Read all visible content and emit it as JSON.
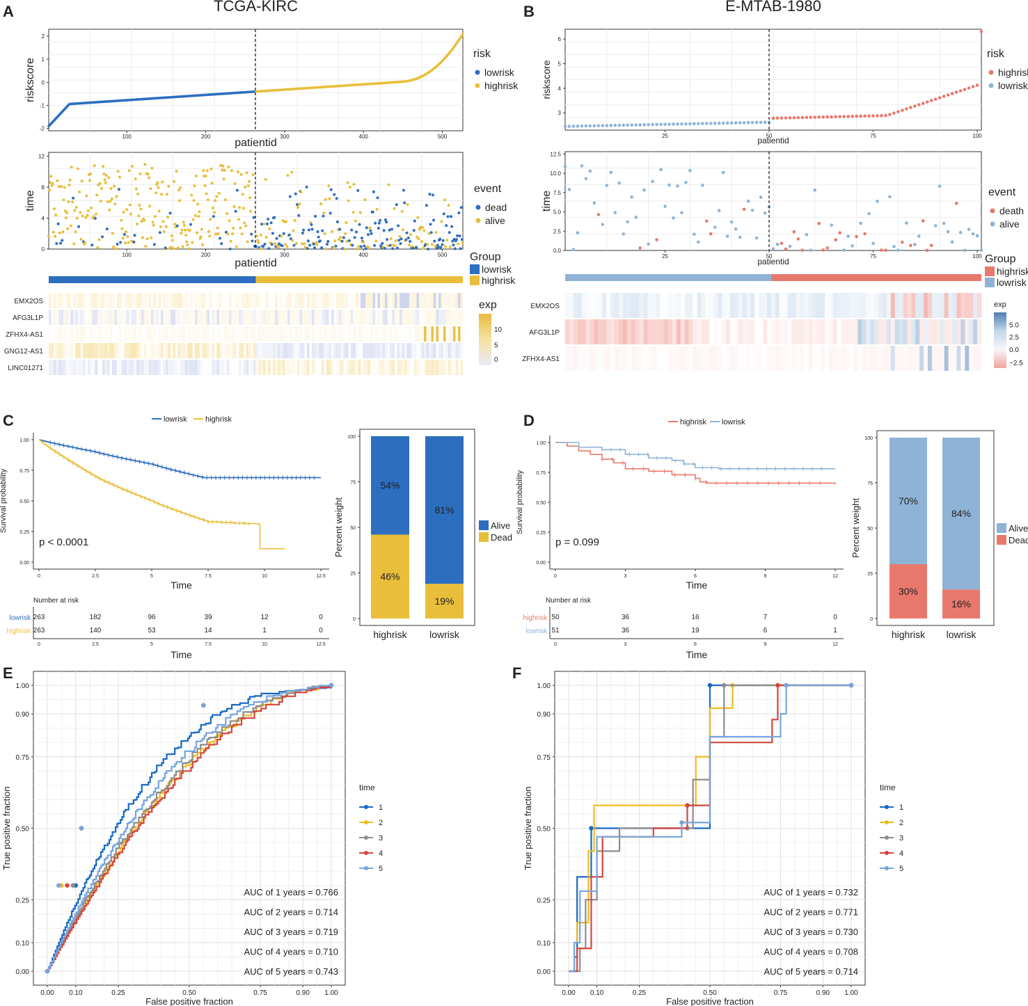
{
  "colors": {
    "lowA": "#2D6EBF",
    "highA": "#E9BE3A",
    "highB": "#E8786C",
    "lowB": "#8FB3D6",
    "roc1": "#1668C4",
    "roc2": "#F0BA1E",
    "roc3": "#8C8C8C",
    "roc4": "#D5453A",
    "roc5": "#74A5DE"
  },
  "panel_labels": {
    "A": "A",
    "B": "B",
    "C": "C",
    "D": "D",
    "E": "E",
    "F": "F"
  },
  "panelA": {
    "title": "TCGA-KIRC",
    "risk": {
      "ylabel": "riskscore",
      "xlabel": "patientid",
      "yticks": [
        "-2",
        "-1",
        "0",
        "1",
        "2"
      ],
      "xticks": [
        "100",
        "200",
        "300",
        "400",
        "500"
      ],
      "legend_title": "risk",
      "legend": [
        "lowrisk",
        "highrisk"
      ]
    },
    "time": {
      "ylabel": "time",
      "xlabel": "patientid",
      "yticks": [
        "0",
        "4",
        "8",
        "12"
      ],
      "xticks": [
        "100",
        "200",
        "300",
        "400",
        "500"
      ],
      "legend_title": "event",
      "legend": [
        "dead",
        "alive"
      ]
    },
    "group": {
      "legend_title": "Group",
      "legend": [
        "lowrisk",
        "highrisk"
      ]
    },
    "heat": {
      "genes": [
        "EMX2OS",
        "AFG3L1P",
        "ZFHX4-AS1",
        "GNG12-AS1",
        "LINC01271"
      ],
      "legend_title": "exp",
      "legend_ticks": [
        "10",
        "5",
        "0"
      ]
    }
  },
  "panelB": {
    "title": "E-MTAB-1980",
    "risk": {
      "ylabel": "riskscore",
      "xlabel": "patientid",
      "yticks": [
        "3",
        "4",
        "5",
        "6"
      ],
      "xticks": [
        "25",
        "50",
        "75",
        "100"
      ],
      "legend_title": "risk",
      "legend": [
        "highrisk",
        "lowrisk"
      ]
    },
    "time": {
      "ylabel": "time",
      "xlabel": "patientid",
      "yticks": [
        "0.0",
        "2.5",
        "5.0",
        "7.5",
        "10.0",
        "12.5"
      ],
      "xticks": [
        "25",
        "50",
        "75",
        "100"
      ],
      "legend_title": "event",
      "legend": [
        "death",
        "alive"
      ]
    },
    "group": {
      "legend_title": "Group",
      "legend": [
        "highrisk",
        "lowrisk"
      ]
    },
    "heat": {
      "genes": [
        "EMX2OS",
        "AFG3L1P",
        "ZFHX4-AS1"
      ],
      "legend_title": "exp",
      "legend_ticks": [
        "5.0",
        "2.5",
        "0.0",
        "−2.5"
      ]
    }
  },
  "panelC": {
    "legend": [
      "lowrisk",
      "highrisk"
    ],
    "ylabel": "Survival probability",
    "xlabel": "Time",
    "yticks": [
      "0.00",
      "0.25",
      "0.50",
      "0.75",
      "1.00"
    ],
    "xticks": [
      "0",
      "2.5",
      "5",
      "7.5",
      "10",
      "12.5"
    ],
    "pvalue": "p < 0.0001",
    "risk_table": {
      "title": "Number at risk",
      "rows": [
        {
          "label": "lowrisk",
          "values": [
            "263",
            "182",
            "96",
            "39",
            "12",
            "0"
          ]
        },
        {
          "label": "highrisk",
          "values": [
            "263",
            "140",
            "53",
            "14",
            "1",
            "0"
          ]
        }
      ],
      "xlabel": "Time"
    },
    "bar": {
      "ylabel": "Percent weight",
      "yticks": [
        "0",
        "25",
        "50",
        "75",
        "100"
      ],
      "categories": [
        "highrisk",
        "lowrisk"
      ],
      "alive_labels": [
        "54%",
        "81%"
      ],
      "dead_labels": [
        "46%",
        "19%"
      ],
      "legend": [
        "Alive",
        "Dead"
      ]
    }
  },
  "panelD": {
    "legend": [
      "highrisk",
      "lowrisk"
    ],
    "ylabel": "Survival probability",
    "xlabel": "Time",
    "yticks": [
      "0.00",
      "0.25",
      "0.50",
      "0.75",
      "1.00"
    ],
    "xticks": [
      "0",
      "3",
      "6",
      "9",
      "12"
    ],
    "pvalue": "p = 0.099",
    "risk_table": {
      "title": "Number at risk",
      "rows": [
        {
          "label": "highrisk",
          "values": [
            "50",
            "36",
            "16",
            "7",
            "0"
          ]
        },
        {
          "label": "lowrisk",
          "values": [
            "51",
            "36",
            "19",
            "6",
            "1"
          ]
        }
      ],
      "xlabel": "Time"
    },
    "bar": {
      "ylabel": "Percent weight",
      "yticks": [
        "0",
        "25",
        "50",
        "75",
        "100"
      ],
      "categories": [
        "highrisk",
        "lowrisk"
      ],
      "alive_labels": [
        "70%",
        "84%"
      ],
      "dead_labels": [
        "30%",
        "16%"
      ],
      "legend": [
        "Alive",
        "Dead"
      ]
    }
  },
  "panelE": {
    "ylabel": "True positive fraction",
    "xlabel": "False positive fraction",
    "yticks": [
      "0.00",
      "0.10",
      "0.25",
      "0.50",
      "0.75",
      "0.90",
      "1.00"
    ],
    "xticks": [
      "0.00",
      "0.10",
      "0.25",
      "0.50",
      "0.75",
      "0.90",
      "1.00"
    ],
    "legend_title": "time",
    "legend": [
      "1",
      "2",
      "3",
      "4",
      "5"
    ],
    "auc": [
      "AUC of 1 years = 0.766",
      "AUC of 2 years = 0.714",
      "AUC of 3 years = 0.719",
      "AUC of 4 years = 0.710",
      "AUC of 5 years = 0.743"
    ]
  },
  "panelF": {
    "ylabel": "True positive fraction",
    "xlabel": "False positive fraction",
    "yticks": [
      "0.00",
      "0.10",
      "0.25",
      "0.50",
      "0.75",
      "0.90",
      "1.00"
    ],
    "xticks": [
      "0.00",
      "0.10",
      "0.25",
      "0.50",
      "0.75",
      "0.90",
      "1.00"
    ],
    "legend_title": "time",
    "legend": [
      "1",
      "2",
      "3",
      "4",
      "5"
    ],
    "auc": [
      "AUC of 1 years = 0.732",
      "AUC of 2 years = 0.771",
      "AUC of 3 years = 0.730",
      "AUC of 4 years = 0.708",
      "AUC of 5 years = 0.714"
    ]
  },
  "chart_data": [
    {
      "type": "scatter",
      "panel": "A-risk",
      "title": "TCGA-KIRC",
      "xlabel": "patientid",
      "ylabel": "riskscore",
      "xlim": [
        1,
        526
      ],
      "ylim": [
        -2,
        2.2
      ],
      "cutoff": 263,
      "series": [
        {
          "name": "lowrisk",
          "x": [
            1,
            5,
            20,
            60,
            120,
            180,
            240,
            263
          ],
          "y": [
            -1.9,
            -1.5,
            -1.25,
            -1.0,
            -0.85,
            -0.7,
            -0.5,
            -0.4
          ]
        },
        {
          "name": "highrisk",
          "x": [
            264,
            300,
            350,
            400,
            450,
            480,
            500,
            515,
            526
          ],
          "y": [
            -0.38,
            -0.3,
            -0.2,
            0.0,
            0.25,
            0.5,
            0.8,
            1.2,
            2.0
          ]
        }
      ]
    },
    {
      "type": "scatter",
      "panel": "A-time",
      "xlabel": "patientid",
      "ylabel": "time",
      "xlim": [
        1,
        526
      ],
      "ylim": [
        0,
        12.5
      ],
      "series": [
        {
          "name": "dead"
        },
        {
          "name": "alive"
        }
      ]
    },
    {
      "type": "scatter",
      "panel": "B-risk",
      "title": "E-MTAB-1980",
      "xlabel": "patientid",
      "ylabel": "riskscore",
      "xlim": [
        1,
        101
      ],
      "ylim": [
        2.3,
        6.4
      ],
      "cutoff": 50,
      "series": [
        {
          "name": "lowrisk",
          "x": [
            1,
            10,
            25,
            40,
            50
          ],
          "y": [
            2.45,
            2.55,
            2.65,
            2.72,
            2.76
          ]
        },
        {
          "name": "highrisk",
          "x": [
            51,
            65,
            75,
            80,
            90,
            98,
            100
          ],
          "y": [
            2.78,
            2.85,
            2.95,
            3.3,
            3.7,
            4.0,
            6.3
          ]
        }
      ]
    },
    {
      "type": "scatter",
      "panel": "B-time",
      "xlabel": "patientid",
      "ylabel": "time",
      "xlim": [
        1,
        101
      ],
      "ylim": [
        0,
        12.5
      ],
      "series": [
        {
          "name": "death"
        },
        {
          "name": "alive"
        }
      ]
    },
    {
      "type": "line",
      "panel": "C",
      "xlabel": "Time",
      "ylabel": "Survival probability",
      "xlim": [
        0,
        12.5
      ],
      "ylim": [
        0,
        1
      ],
      "series": [
        {
          "name": "lowrisk",
          "x": [
            0,
            1,
            2.5,
            5,
            7.5,
            12.5
          ],
          "y": [
            1.0,
            0.96,
            0.9,
            0.8,
            0.69,
            0.69
          ]
        },
        {
          "name": "highrisk",
          "x": [
            0,
            1,
            2.5,
            5,
            7.5,
            9.5,
            9.8,
            10.8
          ],
          "y": [
            1.0,
            0.83,
            0.7,
            0.5,
            0.33,
            0.31,
            0.11,
            0.11
          ]
        }
      ]
    },
    {
      "type": "bar",
      "panel": "C-bar",
      "ylabel": "Percent weight",
      "categories": [
        "highrisk",
        "lowrisk"
      ],
      "series": [
        {
          "name": "Alive",
          "values": [
            54,
            81
          ]
        },
        {
          "name": "Dead",
          "values": [
            46,
            19
          ]
        }
      ]
    },
    {
      "type": "line",
      "panel": "D",
      "xlabel": "Time",
      "ylabel": "Survival probability",
      "xlim": [
        0,
        12
      ],
      "ylim": [
        0,
        1
      ],
      "series": [
        {
          "name": "highrisk",
          "x": [
            0,
            1,
            2,
            3,
            6,
            12
          ],
          "y": [
            1.0,
            0.93,
            0.84,
            0.77,
            0.66,
            0.65
          ]
        },
        {
          "name": "lowrisk",
          "x": [
            0,
            1,
            3,
            5,
            6,
            12
          ],
          "y": [
            1.0,
            0.96,
            0.9,
            0.86,
            0.78,
            0.78
          ]
        }
      ]
    },
    {
      "type": "bar",
      "panel": "D-bar",
      "ylabel": "Percent weight",
      "categories": [
        "highrisk",
        "lowrisk"
      ],
      "series": [
        {
          "name": "Alive",
          "values": [
            70,
            84
          ]
        },
        {
          "name": "Dead",
          "values": [
            30,
            16
          ]
        }
      ]
    },
    {
      "type": "line",
      "panel": "E",
      "xlabel": "False positive fraction",
      "ylabel": "True positive fraction",
      "xlim": [
        0,
        1
      ],
      "ylim": [
        0,
        1
      ],
      "series": [
        {
          "name": "1",
          "auc": 0.766
        },
        {
          "name": "2",
          "auc": 0.714
        },
        {
          "name": "3",
          "auc": 0.719
        },
        {
          "name": "4",
          "auc": 0.71
        },
        {
          "name": "5",
          "auc": 0.743
        }
      ]
    },
    {
      "type": "line",
      "panel": "F",
      "xlabel": "False positive fraction",
      "ylabel": "True positive fraction",
      "xlim": [
        0,
        1
      ],
      "ylim": [
        0,
        1
      ],
      "series": [
        {
          "name": "1",
          "auc": 0.732
        },
        {
          "name": "2",
          "auc": 0.771
        },
        {
          "name": "3",
          "auc": 0.73
        },
        {
          "name": "4",
          "auc": 0.708
        },
        {
          "name": "5",
          "auc": 0.714
        }
      ]
    }
  ]
}
